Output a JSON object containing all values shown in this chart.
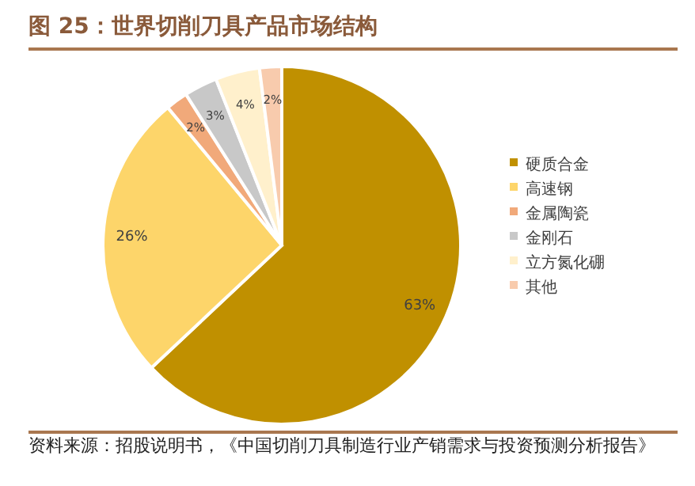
{
  "chart_data": {
    "type": "pie",
    "title": "图 25：世界切削刀具产品市场结构",
    "categories": [
      "硬质合金",
      "高速钢",
      "金属陶瓷",
      "金刚石",
      "立方氮化硼",
      "其他"
    ],
    "values": [
      63,
      26,
      2,
      3,
      4,
      2
    ],
    "colors": [
      "#c09000",
      "#fdd56a",
      "#f1a97a",
      "#c8c8c8",
      "#fff0cc",
      "#f8cbad"
    ],
    "value_labels": [
      "63%",
      "26%",
      "2%",
      "3%",
      "4%",
      "2%"
    ],
    "legend": "right",
    "annotations": [
      "资料来源：招股说明书，《中国切削刀具制造行业产销需求与投资预测分析报告》"
    ]
  }
}
